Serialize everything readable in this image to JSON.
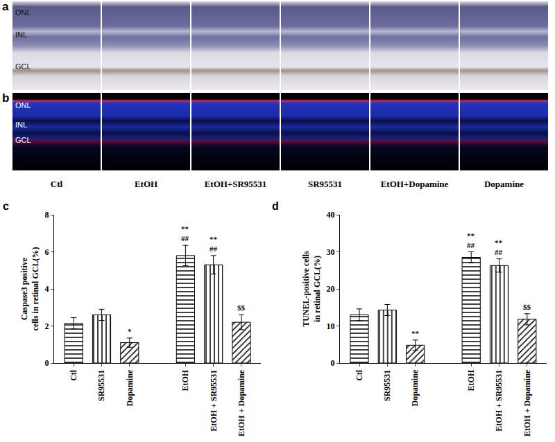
{
  "image_panels": [
    {
      "letter": "a",
      "layers": [
        "ONL",
        "INL",
        "GCL"
      ]
    },
    {
      "letter": "b",
      "layers": [
        "ONL",
        "INL",
        "GCL"
      ]
    }
  ],
  "groups": [
    "Ctl",
    "EtOH",
    "EtOH+SR95531",
    "SR95531",
    "EtOH+Dopamine",
    "Dopamine"
  ],
  "chart_data": [
    {
      "panel": "c",
      "type": "bar",
      "y_label": "Caspase3 positive cells in retinal GCL(%)",
      "categories": [
        "Ctl",
        "SR95531",
        "Dopamine",
        null,
        "EtOH",
        "EtOH + SR95531",
        "EtOH + Dopamine"
      ],
      "values": [
        2.15,
        2.6,
        1.1,
        null,
        5.8,
        5.3,
        2.2
      ],
      "errors": [
        0.3,
        0.3,
        0.25,
        null,
        0.55,
        0.5,
        0.4
      ],
      "color": "#000000",
      "ylim": [
        0,
        8
      ],
      "yticks": [
        0,
        2,
        4,
        6,
        8
      ],
      "grid": false,
      "significance": [
        {
          "category": "Dopamine",
          "marks": [
            "*"
          ]
        },
        {
          "category": "EtOH",
          "marks": [
            "**",
            "##"
          ]
        },
        {
          "category": "EtOH + SR95531",
          "marks": [
            "**",
            "##"
          ]
        },
        {
          "category": "EtOH + Dopamine",
          "marks": [
            "$$"
          ]
        }
      ]
    },
    {
      "panel": "d",
      "type": "bar",
      "y_label": "TUNEL-positive cells in retinal GCL(%)",
      "categories": [
        "Ctl",
        "SR95531",
        "Dopamine",
        null,
        "EtOH",
        "EtOH + SR95531",
        "EtOH + Dopamine"
      ],
      "values": [
        13,
        14.3,
        4.8,
        null,
        28.5,
        26.3,
        11.8
      ],
      "errors": [
        1.6,
        1.5,
        1.4,
        null,
        1.5,
        1.8,
        1.5
      ],
      "color": "#000000",
      "ylim": [
        0,
        40
      ],
      "yticks": [
        0,
        10,
        20,
        30,
        40
      ],
      "grid": false,
      "significance": [
        {
          "category": "Dopamine",
          "marks": [
            "**"
          ]
        },
        {
          "category": "EtOH",
          "marks": [
            "**",
            "##"
          ]
        },
        {
          "category": "EtOH + SR95531",
          "marks": [
            "**",
            "##"
          ]
        },
        {
          "category": "EtOH + Dopamine",
          "marks": [
            "$$"
          ]
        }
      ]
    }
  ]
}
